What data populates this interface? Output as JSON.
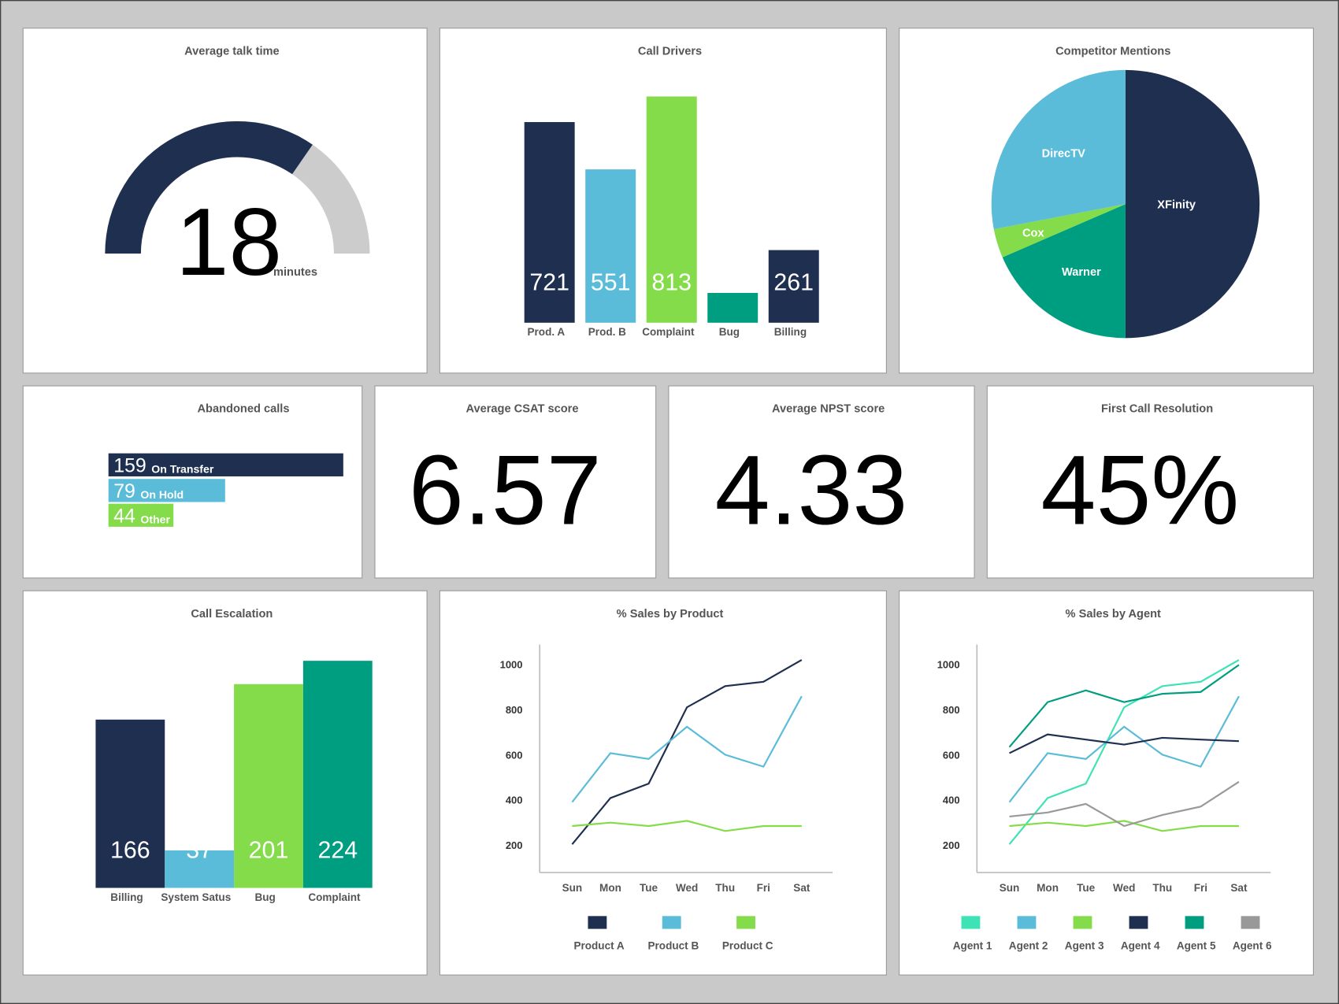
{
  "chart_data": [
    {
      "type": "gauge",
      "title": "Average talk time",
      "value": 18,
      "unit": "minutes",
      "range": [
        0,
        26
      ],
      "color": "#1f2f50",
      "track_color": "#cccccc"
    },
    {
      "type": "bar",
      "title": "Call Drivers",
      "categories": [
        "Prod. A",
        "Prod. B",
        "Complaint",
        "Bug",
        "Billing"
      ],
      "values": [
        721,
        551,
        813,
        107,
        261
      ],
      "colors": [
        "#1f2f50",
        "#5abcd8",
        "#84dc4a",
        "#009e80",
        "#1f2f50"
      ]
    },
    {
      "type": "pie",
      "title": "Competitor Mentions",
      "categories": [
        "XFinity",
        "Warner",
        "Cox",
        "DirecTV"
      ],
      "values": [
        50,
        18.5,
        3.5,
        28
      ],
      "colors": [
        "#1f2f50",
        "#009e80",
        "#84dc4a",
        "#5abcd8"
      ]
    },
    {
      "type": "hbar",
      "title": "Abandoned calls",
      "categories": [
        "On Transfer",
        "On Hold",
        "Other"
      ],
      "values": [
        159,
        79,
        44
      ],
      "colors": [
        "#1f2f50",
        "#5abcd8",
        "#84dc4a"
      ]
    },
    {
      "type": "kpi",
      "title": "Average CSAT score",
      "value": 6.57
    },
    {
      "type": "kpi",
      "title": "Average NPST score",
      "value": 4.33
    },
    {
      "type": "kpi",
      "title": "First Call Resolution",
      "value": 45,
      "value_label": "45%"
    },
    {
      "type": "bar",
      "title": "Call Escalation",
      "categories": [
        "Billing",
        "System Satus",
        "Bug",
        "Complaint"
      ],
      "values": [
        166,
        37,
        201,
        224
      ],
      "colors": [
        "#1f2f50",
        "#5abcd8",
        "#84dc4a",
        "#009e80"
      ]
    },
    {
      "type": "line",
      "title": "% Sales by Product",
      "categories": [
        "Sun",
        "Mon",
        "Tue",
        "Wed",
        "Thu",
        "Fri",
        "Sat"
      ],
      "ylim": [
        80,
        1090
      ],
      "yticks": [
        200,
        400,
        600,
        800,
        1000
      ],
      "series": [
        {
          "name": "Product A",
          "color": "#1f2f50",
          "values": [
            205,
            410,
            474,
            812,
            906,
            925,
            1022
          ]
        },
        {
          "name": "Product B",
          "color": "#5abcd8",
          "values": [
            392,
            609,
            583,
            726,
            602,
            549,
            861
          ]
        },
        {
          "name": "Product C",
          "color": "#84dc4a",
          "values": [
            286,
            301,
            286,
            309,
            264,
            286,
            286
          ]
        }
      ]
    },
    {
      "type": "line",
      "title": "% Sales by Agent",
      "categories": [
        "Sun",
        "Mon",
        "Tue",
        "Wed",
        "Thu",
        "Fri",
        "Sat"
      ],
      "ylim": [
        80,
        1090
      ],
      "yticks": [
        200,
        400,
        600,
        800,
        1000
      ],
      "series": [
        {
          "name": "Agent 1",
          "color": "#3de3b4",
          "values": [
            205,
            410,
            474,
            812,
            906,
            925,
            1022
          ]
        },
        {
          "name": "Agent 2",
          "color": "#5abcd8",
          "values": [
            392,
            609,
            583,
            726,
            602,
            549,
            861
          ]
        },
        {
          "name": "Agent 3",
          "color": "#84dc4a",
          "values": [
            286,
            301,
            286,
            309,
            264,
            286,
            286
          ]
        },
        {
          "name": "Agent 4",
          "color": "#1f2f50",
          "values": [
            609,
            692,
            669,
            647,
            677,
            669,
            662
          ]
        },
        {
          "name": "Agent 5",
          "color": "#009e80",
          "values": [
            636,
            835,
            887,
            835,
            872,
            880,
            1000
          ]
        },
        {
          "name": "Agent 6",
          "color": "#999999",
          "values": [
            328,
            346,
            384,
            286,
            335,
            372,
            482
          ]
        }
      ]
    }
  ]
}
